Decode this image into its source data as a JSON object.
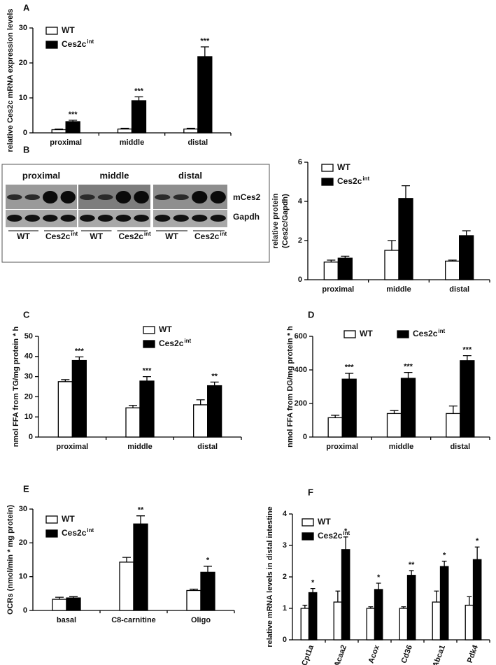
{
  "chart_data": [
    {
      "type": "bar",
      "panel_label": "A",
      "ylabel": [
        "relative Ces2c mRNA expression levels"
      ],
      "categories": [
        "proximal",
        "middle",
        "distal"
      ],
      "ylim": [
        0,
        30
      ],
      "yticks": [
        0,
        10,
        20,
        30
      ],
      "legend": "upper left",
      "legend_layout": "vertical",
      "series": [
        {
          "name": "WT",
          "color": "#ffffff",
          "values": [
            0.9,
            1.1,
            1.1
          ],
          "errors": [
            0.2,
            0.2,
            0.2
          ]
        },
        {
          "name": "Ces2c",
          "name_sup": "int",
          "color": "#000000",
          "values": [
            3.2,
            9.2,
            21.8
          ],
          "errors": [
            0.4,
            1.1,
            2.8
          ],
          "annotations": [
            "***",
            "***",
            "***"
          ]
        }
      ]
    },
    {
      "type": "bar",
      "panel_label": "B",
      "ylabel": [
        "relative protein",
        "(Ces2c/Gapdh)"
      ],
      "categories": [
        "proximal",
        "middle",
        "distal"
      ],
      "ylim": [
        0,
        6
      ],
      "yticks": [
        0,
        2,
        4,
        6
      ],
      "legend": "upper left",
      "legend_layout": "vertical",
      "series": [
        {
          "name": "WT",
          "color": "#ffffff",
          "values": [
            0.9,
            1.5,
            0.95
          ],
          "errors": [
            0.1,
            0.5,
            0.05
          ]
        },
        {
          "name": "Ces2c",
          "name_sup": "int",
          "color": "#000000",
          "values": [
            1.1,
            4.15,
            2.25
          ],
          "errors": [
            0.1,
            0.65,
            0.25
          ]
        }
      ]
    },
    {
      "type": "bar",
      "panel_label": "C",
      "ylabel": [
        "nmol FFA from TG/mg protein * h"
      ],
      "categories": [
        "proximal",
        "middle",
        "distal"
      ],
      "ylim": [
        0,
        50
      ],
      "yticks": [
        0,
        10,
        20,
        30,
        40,
        50
      ],
      "legend": "upper right",
      "legend_layout": "vertical",
      "series": [
        {
          "name": "WT",
          "color": "#ffffff",
          "values": [
            27.5,
            14.5,
            16
          ],
          "errors": [
            1,
            1.2,
            2.5
          ]
        },
        {
          "name": "Ces2c",
          "name_sup": "int",
          "color": "#000000",
          "values": [
            38,
            27.8,
            25.5
          ],
          "errors": [
            1.8,
            2.2,
            1.8
          ],
          "annotations": [
            "***",
            "***",
            "**"
          ]
        }
      ]
    },
    {
      "type": "bar",
      "panel_label": "D",
      "ylabel": [
        "nmol FFA from DG/mg protein * h"
      ],
      "categories": [
        "proximal",
        "middle",
        "distal"
      ],
      "ylim": [
        0,
        600
      ],
      "yticks": [
        0,
        200,
        400,
        600
      ],
      "legend": "upper center",
      "legend_layout": "horizontal",
      "series": [
        {
          "name": "WT",
          "color": "#ffffff",
          "values": [
            115,
            140,
            140
          ],
          "errors": [
            15,
            18,
            45
          ]
        },
        {
          "name": "Ces2c",
          "name_sup": "int",
          "color": "#000000",
          "values": [
            345,
            350,
            455
          ],
          "errors": [
            35,
            35,
            30
          ],
          "annotations": [
            "***",
            "***",
            "***"
          ]
        }
      ]
    },
    {
      "type": "bar",
      "panel_label": "E",
      "ylabel": [
        "OCRs (nmol/min * mg protein)"
      ],
      "categories": [
        "basal",
        "C8-carnitine",
        "Oligo"
      ],
      "ylim": [
        0,
        30
      ],
      "yticks": [
        0,
        10,
        20,
        30
      ],
      "legend": "upper left",
      "legend_layout": "vertical",
      "series": [
        {
          "name": "WT",
          "color": "#ffffff",
          "values": [
            3.3,
            14.3,
            5.9
          ],
          "errors": [
            0.6,
            1.4,
            0.4
          ]
        },
        {
          "name": "Ces2c",
          "name_sup": "int",
          "color": "#000000",
          "values": [
            3.7,
            25.6,
            11.3
          ],
          "errors": [
            0.4,
            2.4,
            1.8
          ],
          "annotations": [
            null,
            "**",
            "*"
          ]
        }
      ]
    },
    {
      "type": "bar",
      "panel_label": "F",
      "ylabel": [
        "relative mRNA levels in distal intestine"
      ],
      "categories": [
        "Cpt1a",
        "Acaa2",
        "Acox",
        "Cd36",
        "Abca1",
        "Pdk4"
      ],
      "ylim": [
        0,
        4
      ],
      "yticks": [
        0,
        1,
        2,
        3,
        4
      ],
      "legend": "upper left",
      "legend_layout": "vertical",
      "series": [
        {
          "name": "WT",
          "color": "#ffffff",
          "values": [
            1.0,
            1.2,
            1.0,
            1.0,
            1.2,
            1.1
          ],
          "errors": [
            0.1,
            0.35,
            0.05,
            0.05,
            0.35,
            0.27
          ]
        },
        {
          "name": "Ces2c",
          "name_sup": "int",
          "color": "#000000",
          "values": [
            1.5,
            2.87,
            1.6,
            2.05,
            2.33,
            2.55
          ],
          "errors": [
            0.13,
            0.4,
            0.2,
            0.15,
            0.17,
            0.4
          ],
          "annotations": [
            "*",
            "*",
            "*",
            "**",
            "*",
            "*"
          ]
        }
      ]
    }
  ],
  "blot": {
    "regions": [
      "proximal",
      "middle",
      "distal"
    ],
    "bands": [
      "mCes2",
      "Gapdh"
    ],
    "groups": [
      "WT",
      "Ces2c"
    ],
    "group_sup": "int"
  }
}
